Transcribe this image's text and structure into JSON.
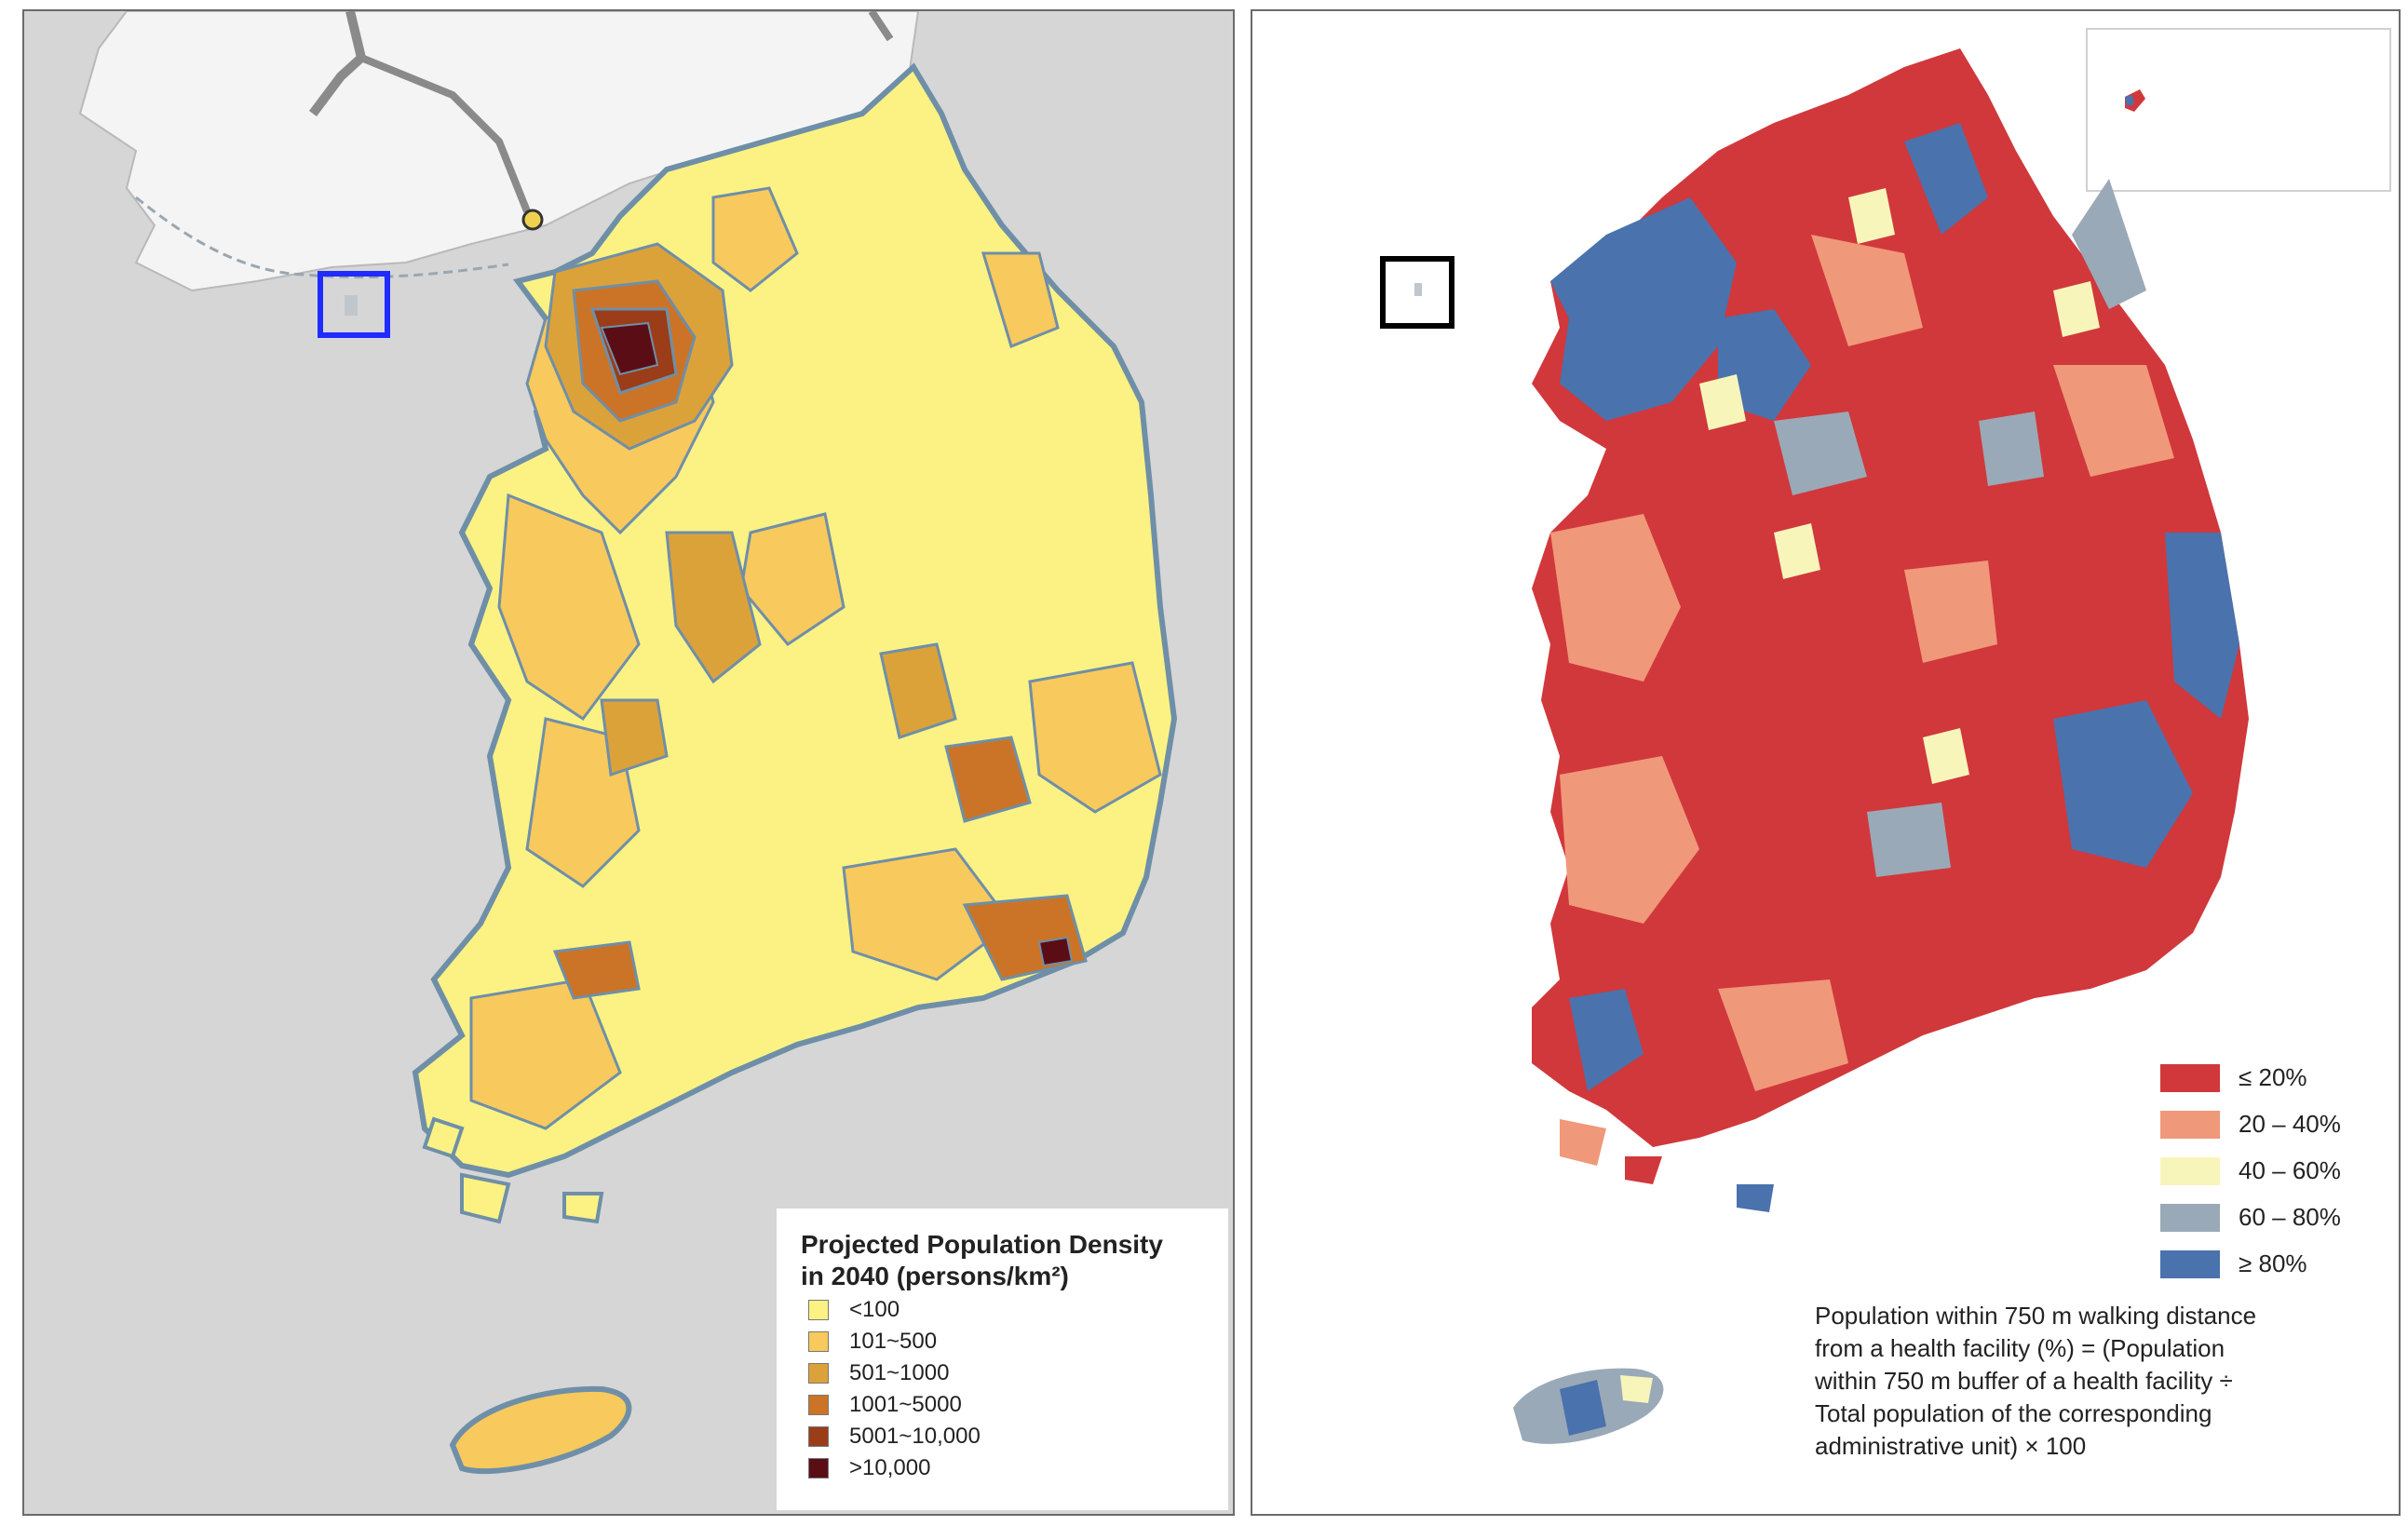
{
  "left_map": {
    "title_line1": "Projected Population Density",
    "title_line2": "in 2040  (persons/km²)",
    "legend": [
      {
        "label": "<100",
        "color": "#fbf283"
      },
      {
        "label": "101~500",
        "color": "#f8c95c"
      },
      {
        "label": "501~1000",
        "color": "#dca23a"
      },
      {
        "label": "1001~5000",
        "color": "#cb7427"
      },
      {
        "label": "5001~10,000",
        "color": "#9a3d18"
      },
      {
        "label": ">10,000",
        "color": "#5b0d16"
      }
    ],
    "highlight_color": "#1f2bff",
    "sea_color": "#d6d6d6",
    "neighbor_land_color": "#f4f4f4",
    "border_color": "#6f8fa8"
  },
  "right_map": {
    "legend": [
      {
        "label": "≤ 20%",
        "color": "#d1383b"
      },
      {
        "label": "20 – 40%",
        "color": "#f0987a"
      },
      {
        "label": "40 – 60%",
        "color": "#f8f5bb"
      },
      {
        "label": "60 – 80%",
        "color": "#9aa9b7"
      },
      {
        "label": "≥ 80%",
        "color": "#4a72ad"
      }
    ],
    "note_lines": [
      "Population within 750 m walking distance",
      "from a health facility (%) = (Population",
      "within 750 m buffer of a health facility ÷",
      "Total population of the corresponding",
      "administrative unit) × 100"
    ],
    "highlight_color": "#000000"
  }
}
